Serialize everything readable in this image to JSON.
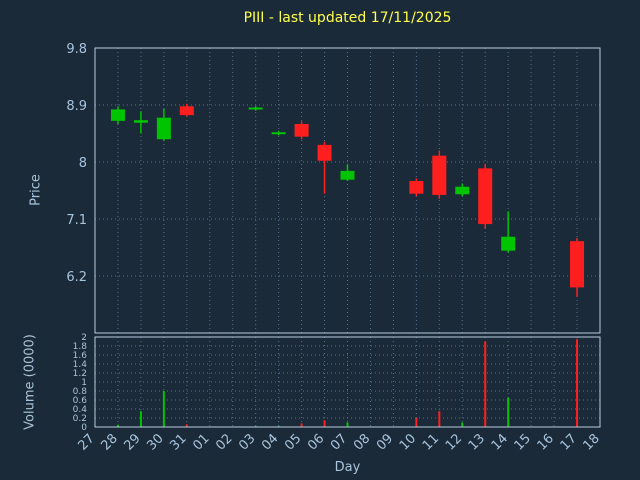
{
  "colors": {
    "background": "#1b2a38",
    "title": "#ffff4d",
    "axis_text": "#a7c4dd",
    "grid": "#4f7396",
    "border": "#b8cde0",
    "up": "#00c400",
    "down": "#ff1f1f"
  },
  "chart_data": {
    "type": "candlestick",
    "title": "PIII - last updated 17/11/2025",
    "xlabel": "Day",
    "ylabel_price": "Price",
    "ylabel_volume": "Volume (0000)",
    "days": [
      "27",
      "28",
      "29",
      "30",
      "31",
      "01",
      "02",
      "03",
      "04",
      "05",
      "06",
      "07",
      "08",
      "09",
      "10",
      "11",
      "12",
      "13",
      "14",
      "15",
      "16",
      "17",
      "18"
    ],
    "price_ticks": [
      "9.8",
      "8.9",
      "8",
      "7.1",
      "6.2"
    ],
    "price_tick_values": [
      9.8,
      8.9,
      8,
      7.1,
      6.2
    ],
    "price_range": [
      5.3,
      9.8
    ],
    "volume_ticks": [
      "2",
      "1.8",
      "1.6",
      "1.4",
      "1.2",
      "1",
      "0.8",
      "0.6",
      "0.4",
      "0.2",
      "0"
    ],
    "volume_tick_values": [
      2,
      1.8,
      1.6,
      1.4,
      1.2,
      1,
      0.8,
      0.6,
      0.4,
      0.2,
      0
    ],
    "volume_range": [
      0,
      2
    ],
    "grid": true,
    "candles": [
      {
        "day": "28",
        "open": 8.65,
        "high": 8.88,
        "low": 8.6,
        "close": 8.83,
        "volume": 0.05
      },
      {
        "day": "29",
        "open": 8.62,
        "high": 8.8,
        "low": 8.45,
        "close": 8.66,
        "volume": 0.35
      },
      {
        "day": "30",
        "open": 8.36,
        "high": 8.84,
        "low": 8.33,
        "close": 8.7,
        "volume": 0.8
      },
      {
        "day": "31",
        "open": 8.88,
        "high": 8.92,
        "low": 8.72,
        "close": 8.74,
        "volume": 0.06
      },
      {
        "day": "03",
        "open": 8.83,
        "high": 8.88,
        "low": 8.81,
        "close": 8.86,
        "volume": 0.02
      },
      {
        "day": "04",
        "open": 8.44,
        "high": 8.49,
        "low": 8.42,
        "close": 8.47,
        "volume": 0.02
      },
      {
        "day": "05",
        "open": 8.6,
        "high": 8.64,
        "low": 8.36,
        "close": 8.4,
        "volume": 0.08
      },
      {
        "day": "06",
        "open": 8.27,
        "high": 8.32,
        "low": 7.5,
        "close": 8.02,
        "volume": 0.15
      },
      {
        "day": "07",
        "open": 7.72,
        "high": 7.96,
        "low": 7.7,
        "close": 7.86,
        "volume": 0.1
      },
      {
        "day": "10",
        "open": 7.7,
        "high": 7.74,
        "low": 7.46,
        "close": 7.5,
        "volume": 0.2
      },
      {
        "day": "11",
        "open": 8.1,
        "high": 8.18,
        "low": 7.42,
        "close": 7.48,
        "volume": 0.35
      },
      {
        "day": "12",
        "open": 7.49,
        "high": 7.66,
        "low": 7.46,
        "close": 7.61,
        "volume": 0.1
      },
      {
        "day": "13",
        "open": 7.9,
        "high": 7.97,
        "low": 6.95,
        "close": 7.02,
        "volume": 1.9
      },
      {
        "day": "14",
        "open": 6.6,
        "high": 7.22,
        "low": 6.57,
        "close": 6.82,
        "volume": 0.65
      },
      {
        "day": "17",
        "open": 6.75,
        "high": 6.8,
        "low": 5.87,
        "close": 6.02,
        "volume": 1.95
      }
    ]
  }
}
